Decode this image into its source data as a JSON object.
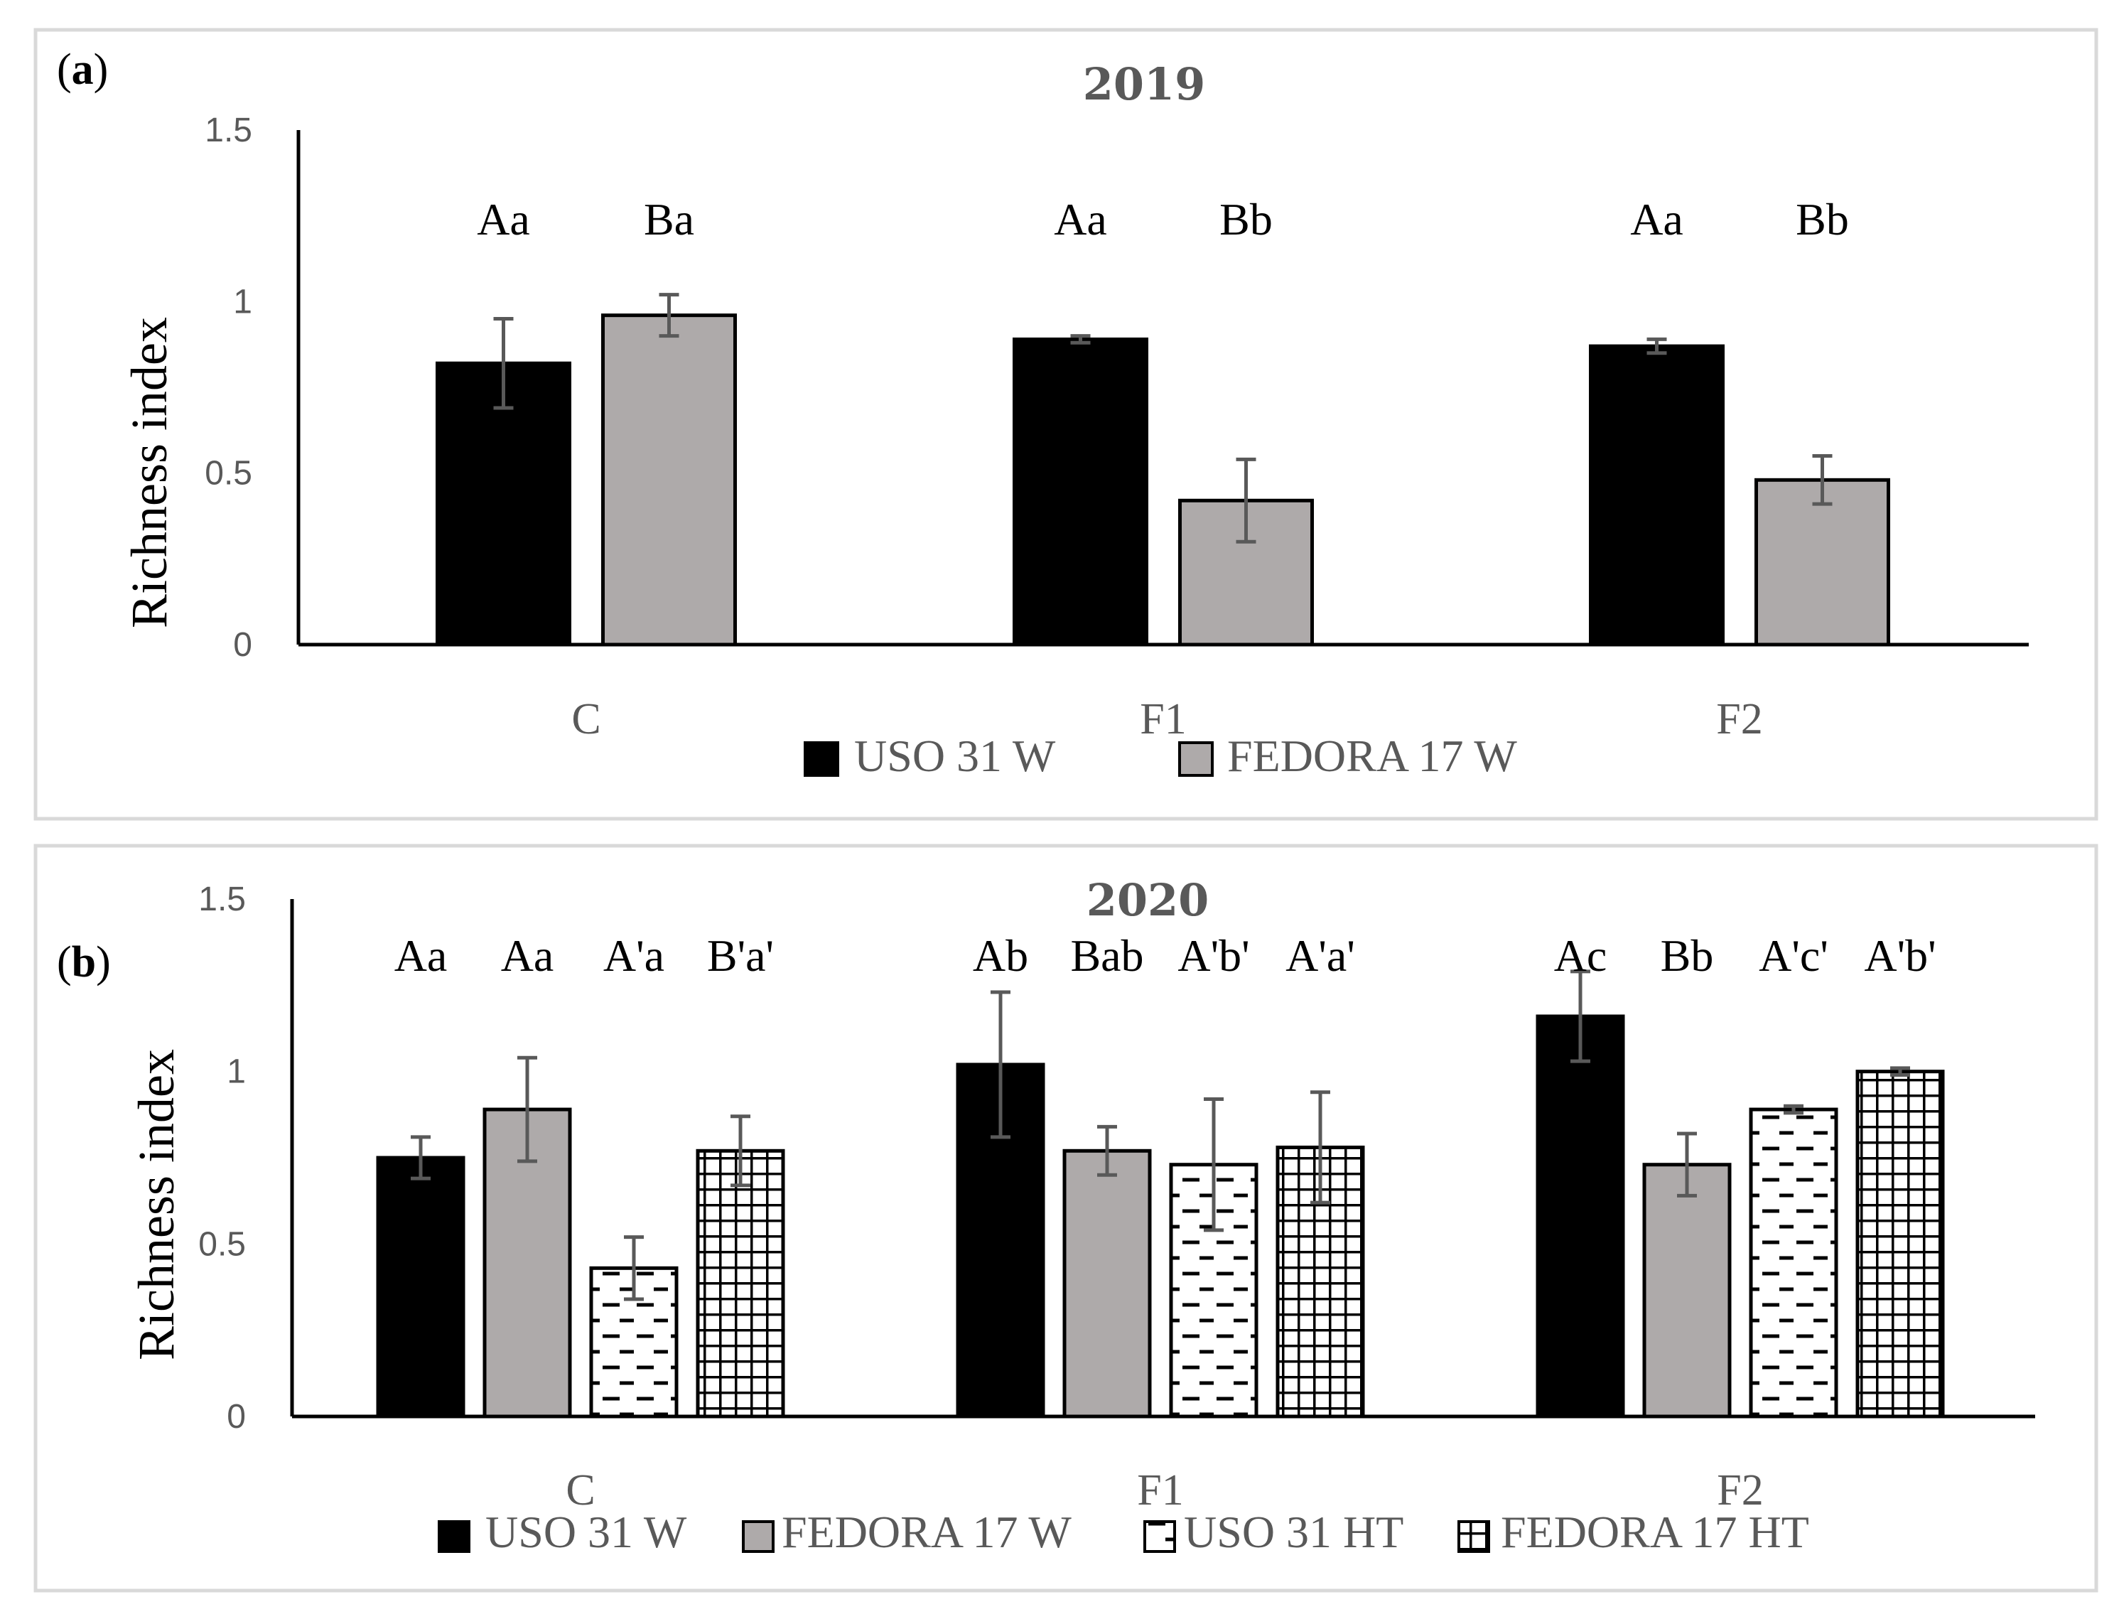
{
  "chart_data": [
    {
      "panel_label_letter": "a",
      "panel_label_open": "(",
      "panel_label_close": ")",
      "type": "bar",
      "title": "2019",
      "ylabel": "Richness index",
      "xlabel": "",
      "ylim": [
        0,
        1.5
      ],
      "yticks": [
        {
          "value": 0,
          "label": "0"
        },
        {
          "value": 0.5,
          "label": "0.5"
        },
        {
          "value": 1,
          "label": "1"
        },
        {
          "value": 1.5,
          "label": "1.5"
        }
      ],
      "categories": [
        "C",
        "F1",
        "F2"
      ],
      "series": [
        {
          "name": "USO 31 W",
          "pattern": "solid-black",
          "values": [
            0.82,
            0.89,
            0.87
          ],
          "errors": [
            0.13,
            0.01,
            0.02
          ],
          "letters": [
            "Aa",
            "Aa",
            "Aa"
          ]
        },
        {
          "name": "FEDORA 17 W",
          "pattern": "solid-gray",
          "values": [
            0.96,
            0.42,
            0.48
          ],
          "errors": [
            0.06,
            0.12,
            0.07
          ],
          "letters": [
            "Ba",
            "Bb",
            "Bb"
          ]
        }
      ],
      "legend_position": "bottom"
    },
    {
      "panel_label_letter": "b",
      "panel_label_open": "(",
      "panel_label_close": ")",
      "type": "bar",
      "title": "2020",
      "ylabel": "Richness index",
      "xlabel": "",
      "ylim": [
        0,
        1.5
      ],
      "yticks": [
        {
          "value": 0,
          "label": "0"
        },
        {
          "value": 0.5,
          "label": "0.5"
        },
        {
          "value": 1,
          "label": "1"
        },
        {
          "value": 1.5,
          "label": "1.5"
        }
      ],
      "categories": [
        "C",
        "F1",
        "F2"
      ],
      "series": [
        {
          "name": "USO 31 W",
          "pattern": "solid-black",
          "values": [
            0.75,
            1.02,
            1.16
          ],
          "errors": [
            0.06,
            0.21,
            0.13
          ],
          "letters": [
            "Aa",
            "Ab",
            "Ac"
          ]
        },
        {
          "name": "FEDORA 17 W",
          "pattern": "solid-gray",
          "values": [
            0.89,
            0.77,
            0.73
          ],
          "errors": [
            0.15,
            0.07,
            0.09
          ],
          "letters": [
            "Aa",
            "Bab",
            "Bb"
          ]
        },
        {
          "name": "USO 31 HT",
          "pattern": "dashes",
          "values": [
            0.43,
            0.73,
            0.89
          ],
          "errors": [
            0.09,
            0.19,
            0.01
          ],
          "letters": [
            "A'a",
            "A'b'",
            "A'c'"
          ]
        },
        {
          "name": "FEDORA 17 HT",
          "pattern": "grid",
          "values": [
            0.77,
            0.78,
            1.0
          ],
          "errors": [
            0.1,
            0.16,
            0.01
          ],
          "letters": [
            "B'a'",
            "A'a'",
            "A'b'"
          ]
        }
      ],
      "legend_position": "bottom"
    }
  ],
  "colors": {
    "black_bar": "#000000",
    "gray_bar": "#aeaaaa",
    "error_bar": "#595959",
    "frame": "#d9d9d9",
    "axis_text": "#595959"
  }
}
